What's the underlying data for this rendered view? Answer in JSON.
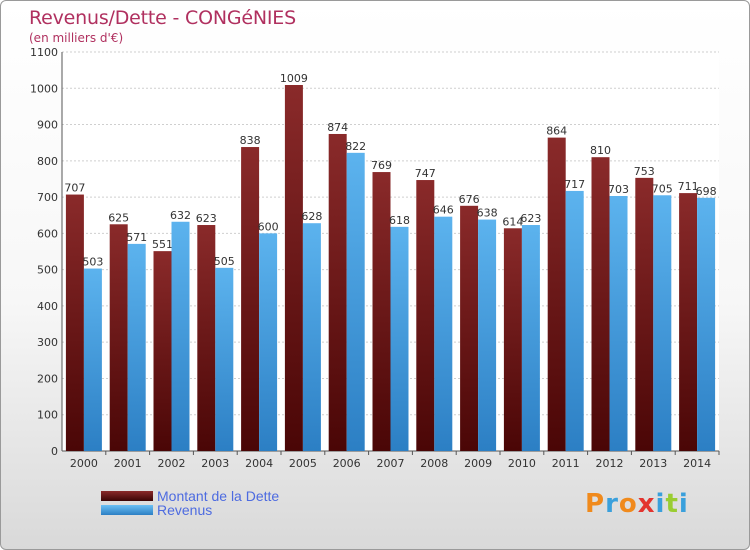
{
  "chart_data": {
    "type": "bar",
    "title": "Revenus/Dette - CONGéNIES",
    "subtitle": "(en milliers d'€)",
    "categories": [
      "2000",
      "2001",
      "2002",
      "2003",
      "2004",
      "2005",
      "2006",
      "2007",
      "2008",
      "2009",
      "2010",
      "2011",
      "2012",
      "2013",
      "2014"
    ],
    "series": [
      {
        "name": "Montant de la Dette",
        "values": [
          707,
          625,
          551,
          623,
          838,
          1009,
          874,
          769,
          747,
          676,
          614,
          864,
          810,
          753,
          711
        ],
        "color": "#7a1c1c"
      },
      {
        "name": "Revenus",
        "values": [
          503,
          571,
          632,
          505,
          600,
          628,
          822,
          618,
          646,
          638,
          623,
          717,
          703,
          705,
          698
        ],
        "color": "#4fa6e4"
      }
    ],
    "ylim": [
      0,
      1100
    ],
    "yticks": [
      0,
      100,
      200,
      300,
      400,
      500,
      600,
      700,
      800,
      900,
      1000,
      1100
    ],
    "grid": true,
    "legend_position": "bottom-left"
  },
  "logo": {
    "text": "Proxiti",
    "colors": [
      "#f08a1c",
      "#3aa0dc",
      "#f08a1c",
      "#e3342f",
      "#3aa0dc",
      "#9acd32",
      "#3aa0dc"
    ]
  }
}
